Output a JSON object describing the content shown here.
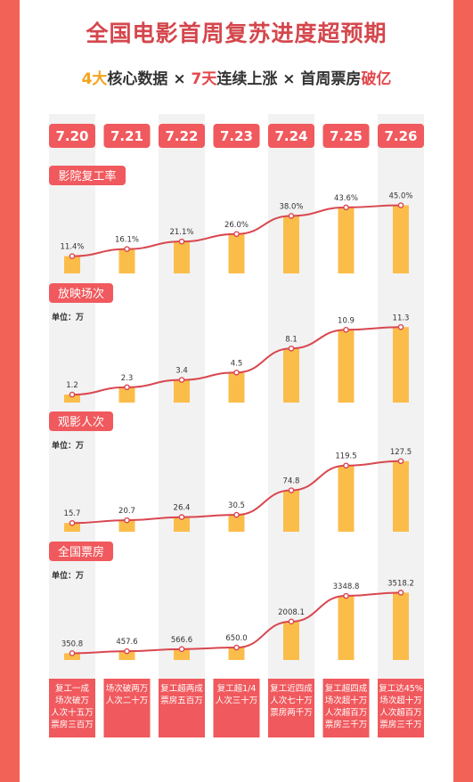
{
  "header": {
    "title": "全国电影首周复苏进度超预期",
    "subtitle_parts": [
      {
        "text": "4大",
        "style": "hl-orange"
      },
      {
        "text": "核心数据 × ",
        "style": ""
      },
      {
        "text": "7天",
        "style": "hl-red"
      },
      {
        "text": "连续上涨 × 首周票房",
        "style": ""
      },
      {
        "text": "破亿",
        "style": "hl-red"
      }
    ]
  },
  "colors": {
    "background": "#f26257",
    "accent_red": "#f0595d",
    "bar": "#fbbd4a",
    "line": "#d9474f",
    "column_stripe": "#f2f2f2"
  },
  "chart_data": {
    "type": "bar",
    "categories": [
      "7.20",
      "7.21",
      "7.22",
      "7.23",
      "7.24",
      "7.25",
      "7.26"
    ],
    "panels": [
      {
        "title": "影院复工率",
        "unit": "",
        "values": [
          11.4,
          16.1,
          21.1,
          26.0,
          38.0,
          43.6,
          45.0
        ],
        "labels": [
          "11.4%",
          "16.1%",
          "21.1%",
          "26.0%",
          "38.0%",
          "43.6%",
          "45.0%"
        ],
        "ylim": [
          0,
          50
        ]
      },
      {
        "title": "放映场次",
        "unit": "单位：万",
        "values": [
          1.2,
          2.3,
          3.4,
          4.5,
          8.1,
          10.9,
          11.3
        ],
        "labels": [
          "1.2",
          "2.3",
          "3.4",
          "4.5",
          "8.1",
          "10.9",
          "11.3"
        ],
        "ylim": [
          0,
          12
        ]
      },
      {
        "title": "观影人次",
        "unit": "单位：万",
        "values": [
          15.7,
          20.7,
          26.4,
          30.5,
          74.8,
          119.5,
          127.5
        ],
        "labels": [
          "15.7",
          "20.7",
          "26.4",
          "30.5",
          "74.8",
          "119.5",
          "127.5"
        ],
        "ylim": [
          0,
          140
        ]
      },
      {
        "title": "全国票房",
        "unit": "单位：万",
        "values": [
          350.8,
          457.6,
          566.6,
          650.0,
          2008.1,
          3348.8,
          3518.2
        ],
        "labels": [
          "350.8",
          "457.6",
          "566.6",
          "650.0",
          "2008.1",
          "3348.8",
          "3518.2"
        ],
        "ylim": [
          0,
          4000
        ]
      }
    ],
    "notes": [
      [
        "复工一成",
        "场次破万",
        "人次十五万",
        "票房三百万"
      ],
      [
        "场次破两万",
        "人次二十万"
      ],
      [
        "复工超两成",
        "票房五百万"
      ],
      [
        "复工超1/4",
        "人次三十万"
      ],
      [
        "复工近四成",
        "人次七十万",
        "票房两千万"
      ],
      [
        "复工超四成",
        "场次超十万",
        "人次超百万",
        "票房三千万"
      ],
      [
        "复工达45%",
        "场次超十万",
        "人次超百万",
        "票房三千万"
      ]
    ]
  }
}
